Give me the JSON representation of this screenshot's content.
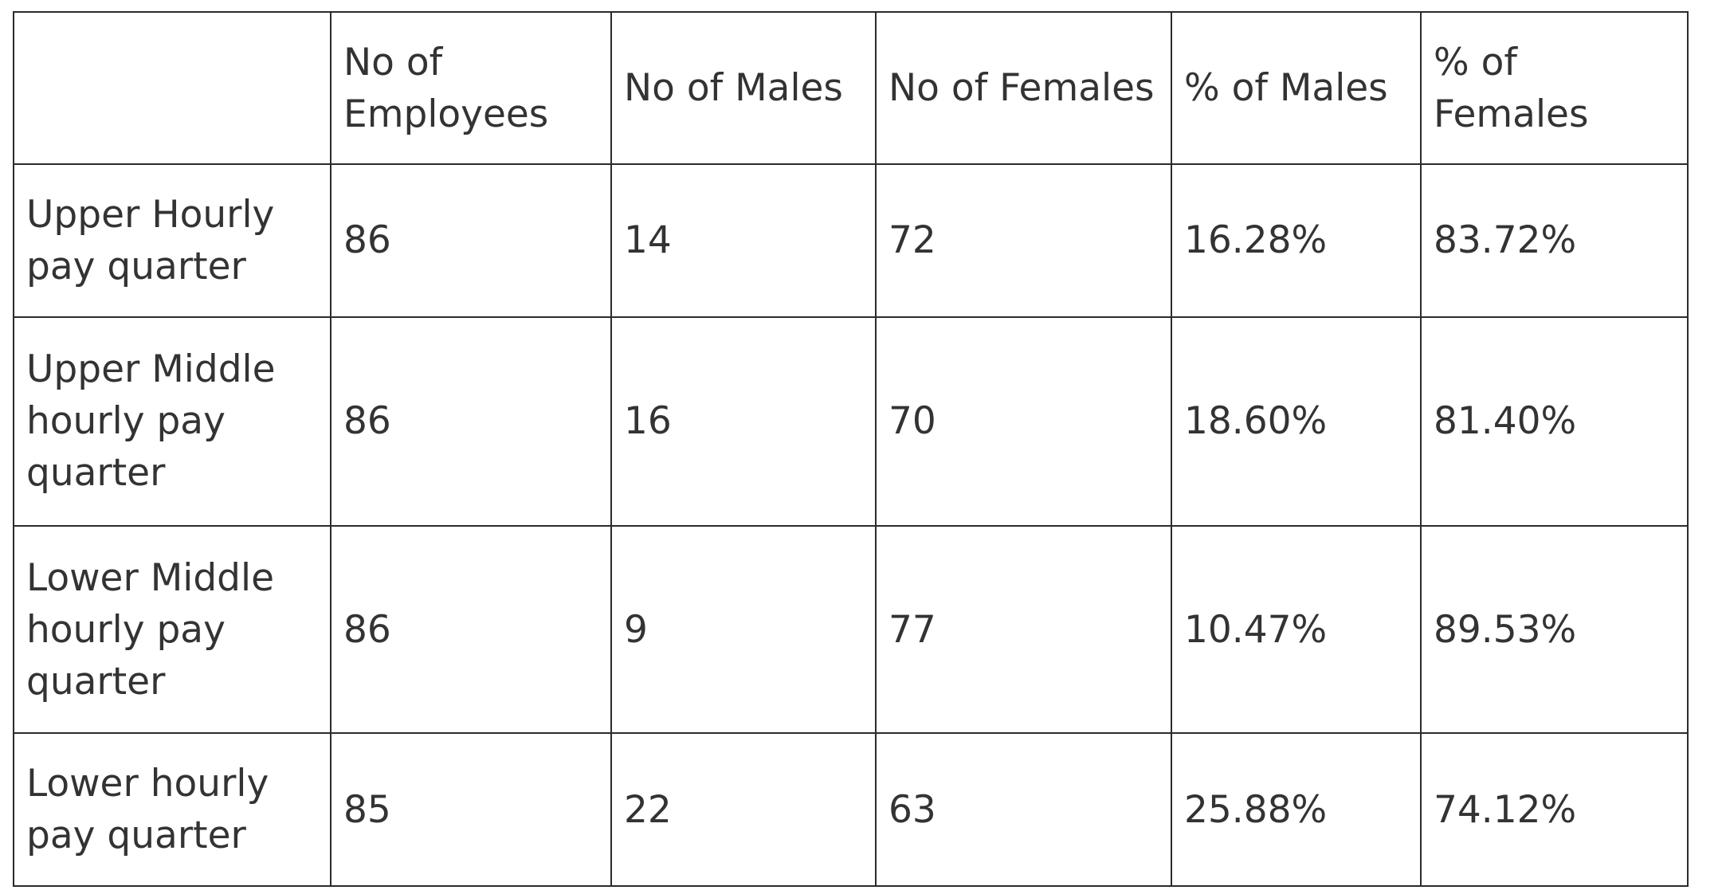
{
  "table": {
    "headers": [
      "",
      "No of Employees",
      "No of Males",
      "No of Females",
      "% of Males",
      "% of Females"
    ],
    "rows": [
      {
        "label": "Upper Hourly pay quarter",
        "employees": "86",
        "males": "14",
        "females": "72",
        "pct_males": "16.28%",
        "pct_females": "83.72%"
      },
      {
        "label": "Upper Middle hourly pay quarter",
        "employees": "86",
        "males": "16",
        "females": "70",
        "pct_males": "18.60%",
        "pct_females": "81.40%"
      },
      {
        "label": "Lower Middle hourly pay quarter",
        "employees": "86",
        "males": "9",
        "females": "77",
        "pct_males": "10.47%",
        "pct_females": "89.53%"
      },
      {
        "label": "Lower hourly pay quarter",
        "employees": "85",
        "males": "22",
        "females": "63",
        "pct_males": "25.88%",
        "pct_females": "74.12%"
      }
    ]
  },
  "colors": {
    "text": "#333333",
    "border": "#2b2b2b",
    "background": "#ffffff"
  }
}
